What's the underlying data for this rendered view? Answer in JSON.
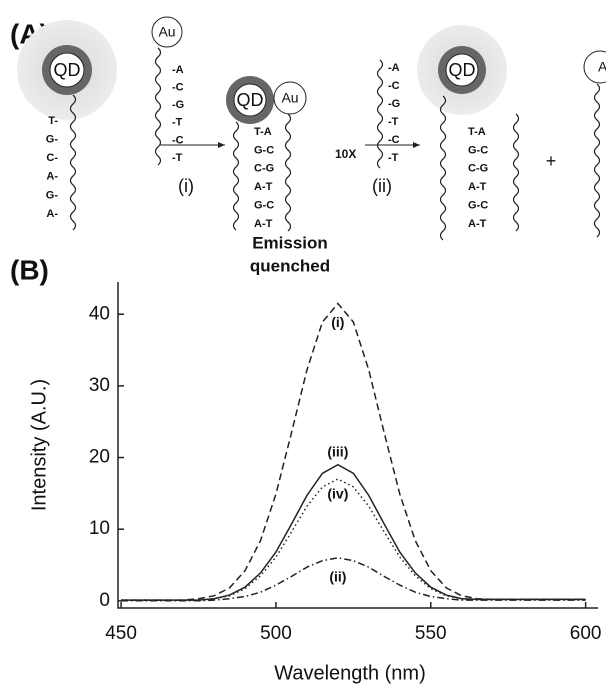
{
  "diagram": {
    "label": "(A)",
    "probe": {
      "qd": "QD",
      "bases": [
        "T-",
        "G-",
        "C-",
        "A-",
        "G-",
        "A-"
      ]
    },
    "target": {
      "au": "Au",
      "bases": [
        "-A",
        "-C",
        "-G",
        "-T",
        "-C",
        "-T"
      ]
    },
    "step1": "(i)",
    "complex": {
      "qd": "QD",
      "au": "Au",
      "pairs": [
        "T-A",
        "G-C",
        "C-G",
        "A-T",
        "G-C",
        "A-T"
      ],
      "note": [
        "Emission",
        "quenched"
      ]
    },
    "competitor": {
      "amount": "10X",
      "bases": [
        "-A",
        "-C",
        "-G",
        "-T",
        "-C",
        "-T"
      ]
    },
    "step2": "(ii)",
    "product": {
      "qd": "QD",
      "pairs": [
        "T-A",
        "G-C",
        "C-G",
        "A-T",
        "G-C",
        "A-T"
      ]
    },
    "plus": "+",
    "released": {
      "au": "Au"
    }
  },
  "panel_b": "(B)",
  "chart_data": {
    "type": "line",
    "xlabel": "Wavelength (nm)",
    "ylabel": "Intensity (A.U.)",
    "x": [
      450,
      455,
      460,
      465,
      470,
      475,
      480,
      485,
      490,
      495,
      500,
      505,
      510,
      515,
      520,
      525,
      530,
      535,
      540,
      545,
      550,
      555,
      560,
      565,
      570,
      575,
      580,
      585,
      590,
      595,
      600
    ],
    "series": [
      {
        "name": "(i)",
        "color": "#222222",
        "line_style": "dashed",
        "values": [
          0.1,
          0.1,
          0.1,
          0.1,
          0.1,
          0.3,
          0.7,
          1.8,
          4.2,
          8.4,
          14.9,
          23.4,
          32.2,
          38.9,
          41.5,
          38.9,
          32.2,
          23.4,
          14.9,
          8.4,
          4.2,
          1.8,
          0.7,
          0.3,
          0.2,
          0.2,
          0.2,
          0.2,
          0.2,
          0.2,
          0.2
        ]
      },
      {
        "name": "(iii)",
        "color": "#222222",
        "line_style": "solid",
        "values": [
          0.1,
          0.1,
          0.1,
          0.1,
          0.1,
          0.1,
          0.3,
          0.8,
          1.9,
          3.9,
          6.8,
          10.7,
          14.7,
          17.8,
          19,
          17.8,
          14.7,
          10.7,
          6.8,
          3.9,
          1.9,
          0.8,
          0.3,
          0.2,
          0.2,
          0.2,
          0.2,
          0.2,
          0.2,
          0.2,
          0.2
        ]
      },
      {
        "name": "(iv)",
        "color": "#222222",
        "line_style": "dotted",
        "values": [
          0.1,
          0.1,
          0.1,
          0.1,
          0.1,
          0.1,
          0.3,
          0.7,
          1.7,
          3.5,
          6.1,
          9.6,
          13.2,
          15.9,
          17,
          15.9,
          13.2,
          9.6,
          6.1,
          3.5,
          1.7,
          0.7,
          0.3,
          0.2,
          0.2,
          0.2,
          0.2,
          0.2,
          0.2,
          0.2,
          0.2
        ]
      },
      {
        "name": "(ii)",
        "color": "#222222",
        "line_style": "dashdot",
        "values": [
          0,
          0,
          0,
          0,
          0,
          0,
          0.1,
          0.3,
          0.6,
          1.2,
          2.2,
          3.4,
          4.7,
          5.6,
          6,
          5.6,
          4.7,
          3.4,
          2.2,
          1.2,
          0.6,
          0.3,
          0.1,
          0.1,
          0.1,
          0.1,
          0.1,
          0.1,
          0.1,
          0.1,
          0.1
        ]
      }
    ],
    "xlim": [
      449,
      604
    ],
    "xticks": [
      450,
      500,
      550,
      600
    ],
    "ylim": [
      -1,
      44.5
    ],
    "yticks": [
      0,
      10,
      20,
      30,
      40
    ]
  }
}
